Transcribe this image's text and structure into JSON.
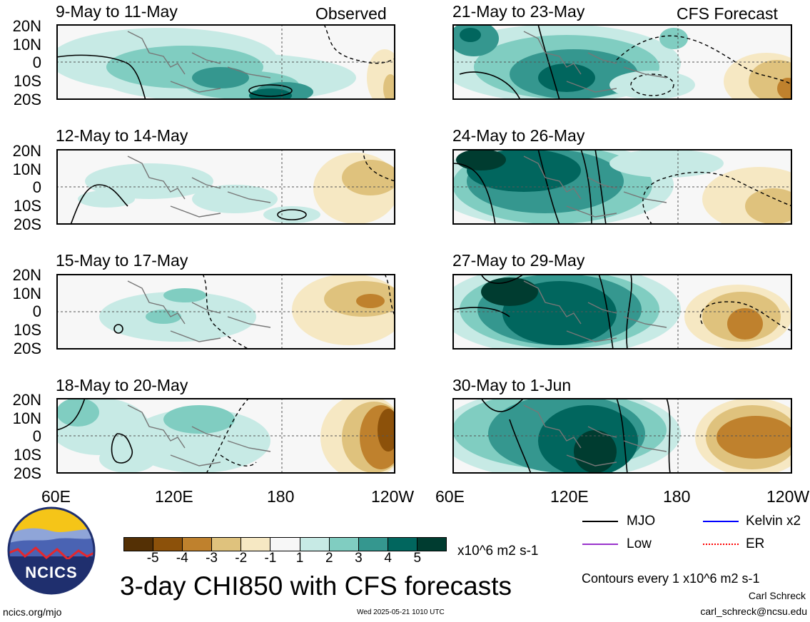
{
  "header": {
    "observed_label": "Observed",
    "forecast_label": "CFS Forecast"
  },
  "panels_left": [
    {
      "title": "9-May to 11-May"
    },
    {
      "title": "12-May to 14-May"
    },
    {
      "title": "15-May to 17-May"
    },
    {
      "title": "18-May to 20-May"
    }
  ],
  "panels_right": [
    {
      "title": "21-May to 23-May"
    },
    {
      "title": "24-May to 26-May"
    },
    {
      "title": "27-May to 29-May"
    },
    {
      "title": "30-May to 1-Jun"
    }
  ],
  "lat_labels": [
    "20N",
    "10N",
    "0",
    "10S",
    "20S"
  ],
  "lon_labels": [
    "60E",
    "120E",
    "180",
    "120W"
  ],
  "colorbar": {
    "labels": [
      "-5",
      "-4",
      "-3",
      "-2",
      "-1",
      "1",
      "2",
      "3",
      "4",
      "5"
    ],
    "units": "x10^6 m2 s-1",
    "colors": [
      "#543005",
      "#8c510a",
      "#bf812d",
      "#dfc27d",
      "#f6e8c3",
      "#f7f7f7",
      "#c7eae5",
      "#80cdc1",
      "#35978f",
      "#01665e",
      "#003c30"
    ]
  },
  "legend": {
    "mjo": "MJO",
    "kelvin": "Kelvin x2",
    "low": "Low",
    "er": "ER",
    "colors": {
      "mjo": "#000000",
      "kelvin": "#0000ff",
      "low": "#9933cc",
      "er": "#ff0000"
    }
  },
  "main_title": "3-day CHI850 with CFS forecasts",
  "contour_note": "Contours every 1 x10^6 m2 s-1",
  "logo_text": "NCICS",
  "footer": {
    "url": "ncics.org/mjo",
    "timestamp": "Wed 2025-05-21 1010 UTC",
    "author": "Carl Schreck",
    "email": "carl_schreck@ncsu.edu"
  }
}
